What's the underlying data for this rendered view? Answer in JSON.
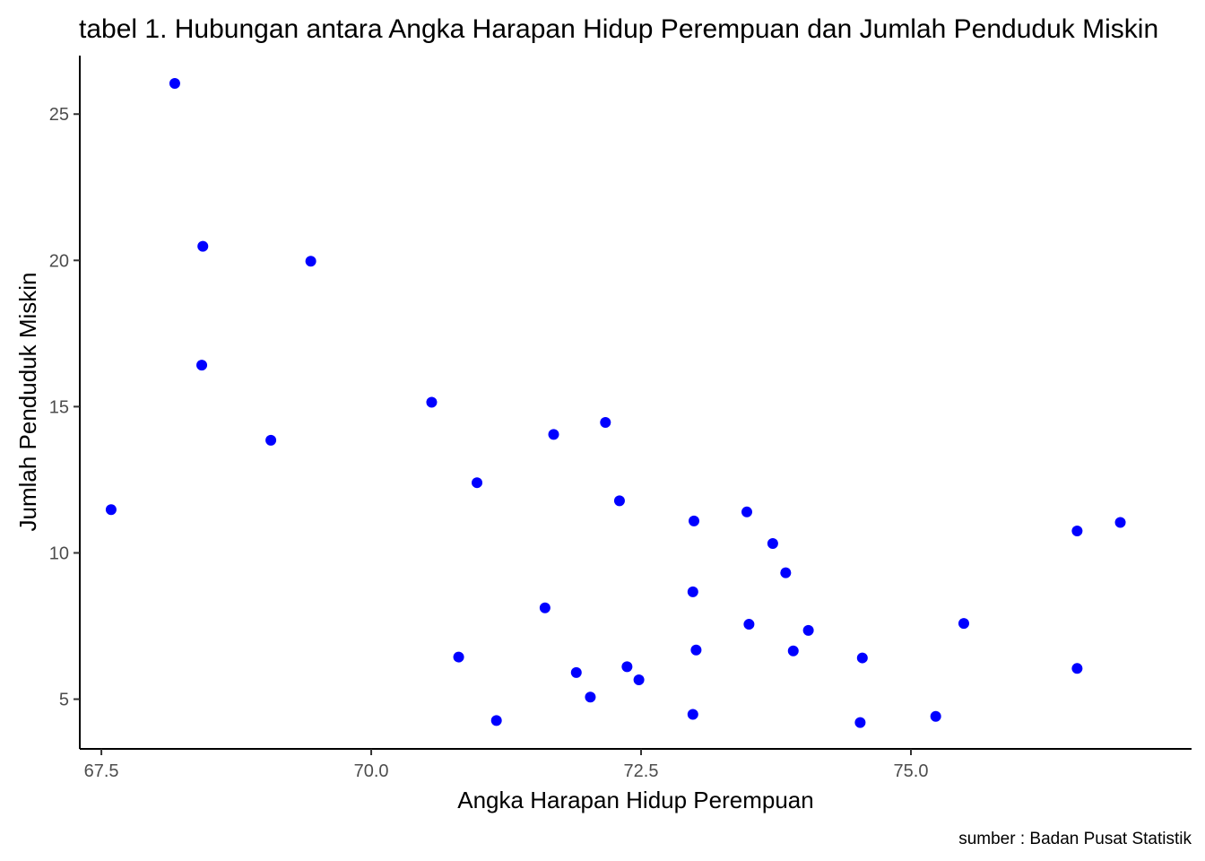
{
  "chart_data": {
    "type": "scatter",
    "title": "tabel 1. Hubungan antara Angka Harapan Hidup Perempuan dan Jumlah Penduduk Miskin",
    "xlabel": "Angka Harapan Hidup Perempuan",
    "ylabel": "Jumlah Penduduk Miskin",
    "caption": "sumber : Badan Pusat Statistik",
    "xlim": [
      67.3,
      77.6
    ],
    "ylim": [
      3.3,
      27.0
    ],
    "x_ticks": [
      67.5,
      70.0,
      72.5,
      75.0
    ],
    "x_tick_labels": [
      "67.5",
      "70.0",
      "72.5",
      "75.0"
    ],
    "y_ticks": [
      5,
      10,
      15,
      20,
      25
    ],
    "y_tick_labels": [
      "5",
      "10",
      "15",
      "20",
      "25"
    ],
    "grid": false,
    "point_color": "#0000ff",
    "x": [
      67.59,
      68.18,
      68.44,
      68.43,
      69.07,
      69.44,
      70.56,
      70.81,
      70.98,
      71.16,
      71.61,
      71.69,
      71.9,
      72.03,
      72.17,
      72.3,
      72.37,
      72.48,
      72.98,
      72.98,
      72.99,
      73.01,
      73.48,
      73.5,
      73.72,
      73.84,
      73.91,
      74.05,
      74.53,
      74.55,
      75.23,
      75.49,
      76.54,
      76.54,
      76.94
    ],
    "y": [
      11.48,
      26.05,
      20.48,
      16.42,
      13.85,
      19.97,
      15.15,
      6.44,
      12.4,
      4.27,
      8.12,
      14.05,
      5.91,
      5.07,
      14.46,
      11.78,
      6.11,
      5.66,
      8.67,
      4.48,
      11.09,
      6.68,
      11.4,
      7.56,
      10.32,
      9.32,
      6.65,
      7.35,
      4.2,
      6.41,
      4.41,
      7.59,
      10.75,
      6.05,
      11.04
    ]
  }
}
